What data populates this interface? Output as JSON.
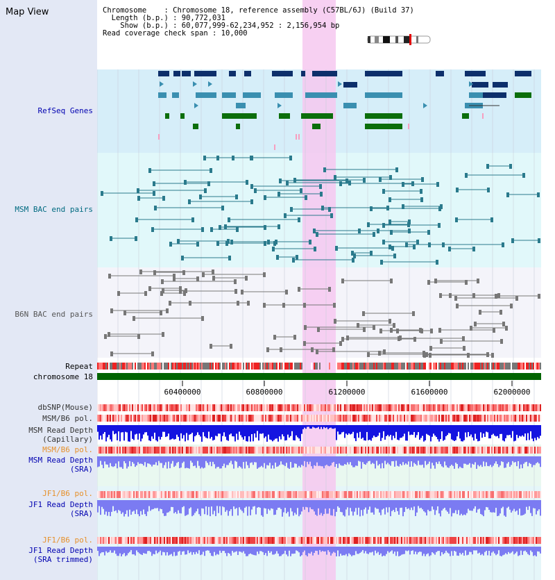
{
  "title": "Map View",
  "info": {
    "line1": "Chromosome    : Chromosome 18, reference assembly (C57BL/6J) (Build 37)",
    "line2": "  Length (b.p.) : 90,772,031",
    "line3": "    Show (b.p.) : 60,077,999-62,234,952 : 2,156,954 bp",
    "line4": "Read coverage check span : 10,000"
  },
  "tracks": {
    "refseq": {
      "label": "RefSeq Genes",
      "color": "#0000b0"
    },
    "msm_bac": {
      "label": "MSM BAC end pairs",
      "color": "#006a80"
    },
    "b6n_bac": {
      "label": "B6N BAC end pairs",
      "color": "#555555"
    },
    "repeat": {
      "label": "Repeat",
      "color": "#000000"
    },
    "chromosome": {
      "label": "chromosome 18",
      "color": "#000000"
    },
    "dbsnp": {
      "label": "dbSNP(Mouse)",
      "color": "#333333"
    },
    "msm_b6_pol1": {
      "label": "MSM/B6 pol.",
      "color": "#333333"
    },
    "msm_depth_cap": {
      "label1": "MSM Read Depth",
      "label2": "(Capillary)",
      "color": "#333333"
    },
    "msm_b6_pol2": {
      "label": "MSM/B6 pol.",
      "color": "#e6902a"
    },
    "msm_depth_sra": {
      "label1": "MSM Read Depth",
      "label2": "(SRA)",
      "color": "#0000b0"
    },
    "jf1_b6_pol1": {
      "label": "JF1/B6 pol.",
      "color": "#e6902a"
    },
    "jf1_depth_sra": {
      "label1": "JF1 Read Depth",
      "label2": "(SRA)",
      "color": "#0000b0"
    },
    "jf1_b6_pol2": {
      "label": "JF1/B6 pol.",
      "color": "#e6902a"
    },
    "jf1_depth_trim": {
      "label1": "JF1 Read Depth",
      "label2": "(SRA trimmed)",
      "color": "#0000b0"
    }
  },
  "axis": {
    "ticks": [
      "60400000",
      "60800000",
      "61200000",
      "61600000",
      "62000000"
    ],
    "start_bp": 60077999,
    "end_bp": 62234952
  },
  "colors": {
    "refseq_bg": "#d6eef9",
    "msm_bg": "#e1f8fa",
    "b6n_bg": "#f4f4fa",
    "lower_bg": "#e9f8f0",
    "highlight": "#f6c8f0",
    "chrom_bar": "#006400",
    "gene_dark": "#0d2f6b",
    "gene_mid": "#3a8fb0",
    "gene_green": "#0b6e0b",
    "msm_line": "#2a7a8c",
    "b6n_line": "#777777",
    "depth_blue": "#1414e0",
    "depth_light": "#7b7bf2"
  }
}
